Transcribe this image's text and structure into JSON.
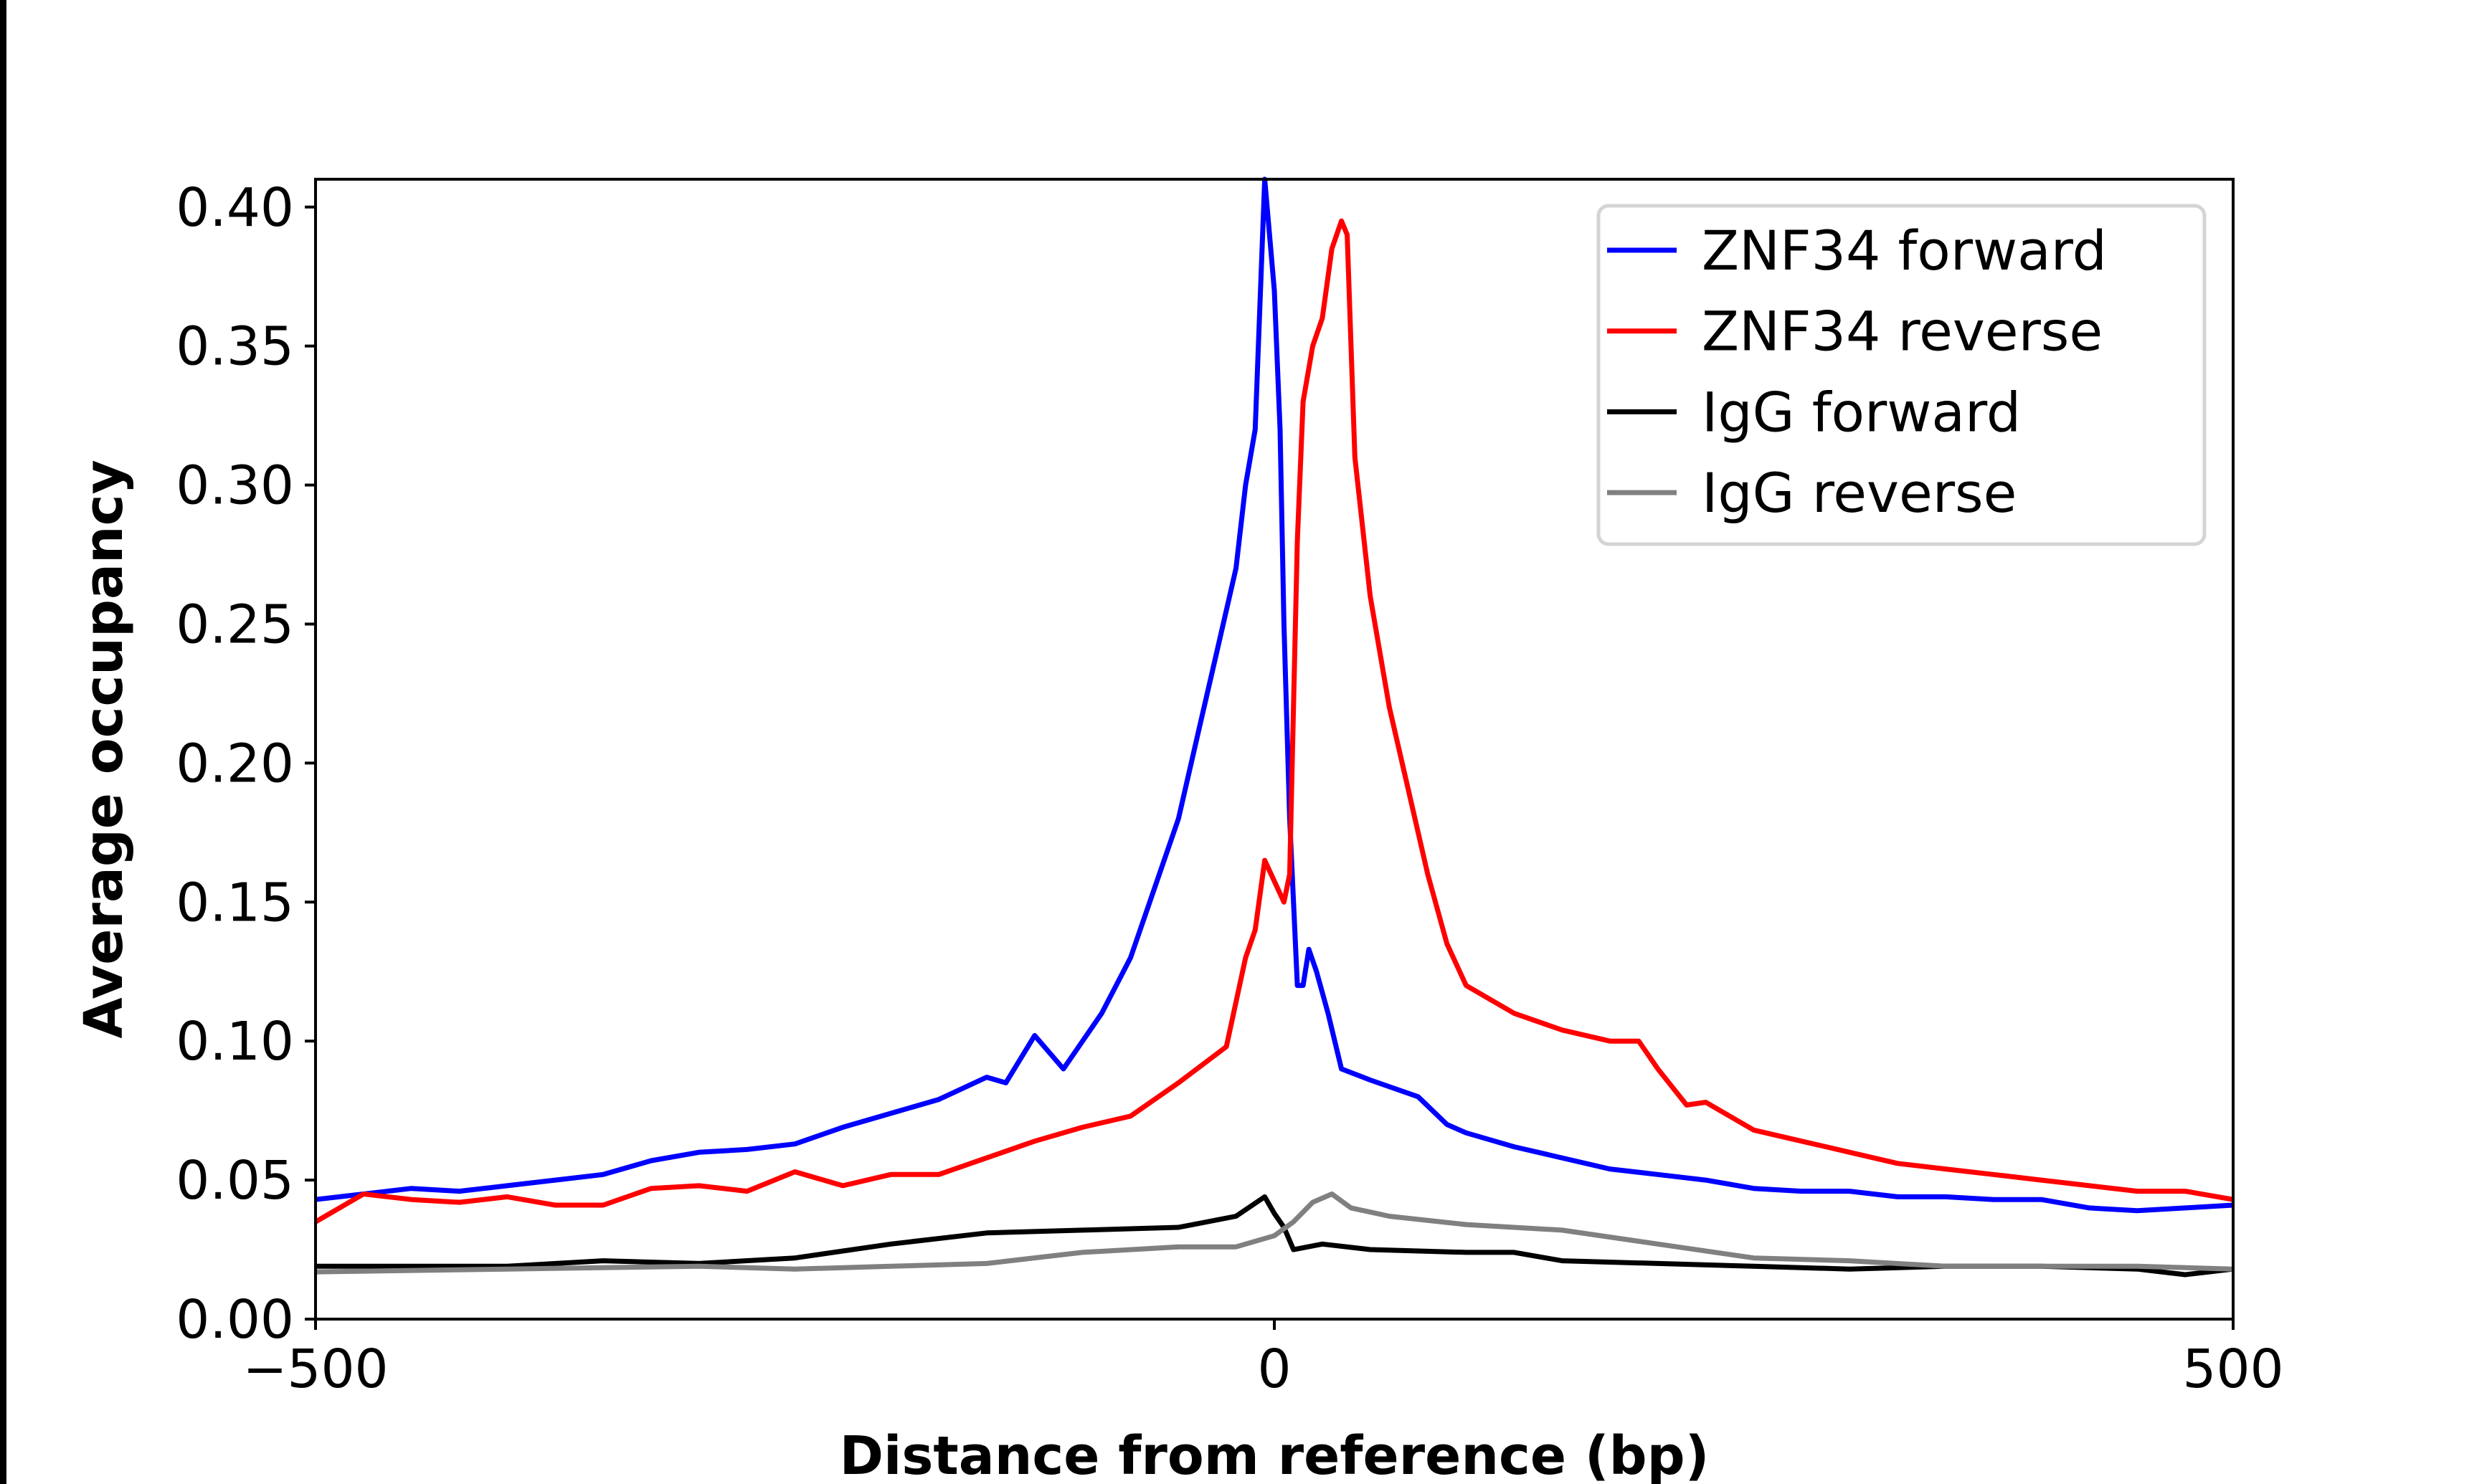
{
  "chart_data": {
    "type": "line",
    "title": "",
    "xlabel": "Distance from reference (bp)",
    "ylabel": "Average occupancy",
    "xlim": [
      -500,
      500
    ],
    "ylim": [
      0,
      0.41
    ],
    "xticks": [
      -500,
      0,
      500
    ],
    "xtick_labels": [
      "−500",
      "0",
      "500"
    ],
    "yticks": [
      0,
      0.05,
      0.1,
      0.15,
      0.2,
      0.25,
      0.3,
      0.35,
      0.4
    ],
    "ytick_labels": [
      "0.00",
      "0.05",
      "0.10",
      "0.15",
      "0.20",
      "0.25",
      "0.30",
      "0.35",
      "0.40"
    ],
    "grid": false,
    "legend_position": "top-right",
    "series": [
      {
        "name": "ZNF34 forward",
        "color": "#0000ff",
        "x": [
          -500,
          -475,
          -450,
          -425,
          -400,
          -375,
          -350,
          -325,
          -300,
          -275,
          -250,
          -225,
          -200,
          -175,
          -150,
          -140,
          -125,
          -110,
          -100,
          -90,
          -75,
          -60,
          -50,
          -40,
          -30,
          -20,
          -15,
          -10,
          -5,
          0,
          3,
          5,
          8,
          12,
          15,
          18,
          22,
          28,
          35,
          50,
          75,
          90,
          100,
          125,
          150,
          175,
          200,
          225,
          250,
          275,
          300,
          325,
          350,
          375,
          400,
          425,
          450,
          475,
          500
        ],
        "y": [
          0.043,
          0.045,
          0.047,
          0.046,
          0.048,
          0.05,
          0.052,
          0.057,
          0.06,
          0.061,
          0.063,
          0.069,
          0.074,
          0.079,
          0.087,
          0.085,
          0.102,
          0.09,
          0.1,
          0.11,
          0.13,
          0.16,
          0.18,
          0.21,
          0.24,
          0.27,
          0.3,
          0.32,
          0.41,
          0.37,
          0.32,
          0.25,
          0.18,
          0.12,
          0.12,
          0.133,
          0.125,
          0.11,
          0.09,
          0.086,
          0.08,
          0.07,
          0.067,
          0.062,
          0.058,
          0.054,
          0.052,
          0.05,
          0.047,
          0.046,
          0.046,
          0.044,
          0.044,
          0.043,
          0.043,
          0.04,
          0.039,
          0.04,
          0.041
        ]
      },
      {
        "name": "ZNF34 reverse",
        "color": "#ff0000",
        "x": [
          -500,
          -475,
          -450,
          -425,
          -400,
          -375,
          -350,
          -325,
          -300,
          -275,
          -250,
          -225,
          -200,
          -175,
          -150,
          -125,
          -100,
          -75,
          -50,
          -25,
          -15,
          -10,
          -5,
          5,
          8,
          10,
          12,
          15,
          20,
          25,
          30,
          35,
          38,
          42,
          50,
          60,
          70,
          80,
          90,
          100,
          125,
          150,
          175,
          190,
          200,
          215,
          225,
          250,
          275,
          300,
          325,
          350,
          375,
          400,
          425,
          450,
          475,
          500
        ],
        "y": [
          0.035,
          0.045,
          0.043,
          0.042,
          0.044,
          0.041,
          0.041,
          0.047,
          0.048,
          0.046,
          0.053,
          0.048,
          0.052,
          0.052,
          0.058,
          0.064,
          0.069,
          0.073,
          0.085,
          0.098,
          0.13,
          0.14,
          0.165,
          0.15,
          0.16,
          0.22,
          0.28,
          0.33,
          0.35,
          0.36,
          0.385,
          0.395,
          0.39,
          0.31,
          0.26,
          0.22,
          0.19,
          0.16,
          0.135,
          0.12,
          0.11,
          0.104,
          0.1,
          0.1,
          0.09,
          0.077,
          0.078,
          0.068,
          0.064,
          0.06,
          0.056,
          0.054,
          0.052,
          0.05,
          0.048,
          0.046,
          0.046,
          0.043
        ]
      },
      {
        "name": "IgG forward",
        "color": "#000000",
        "x": [
          -500,
          -400,
          -350,
          -300,
          -250,
          -200,
          -150,
          -100,
          -50,
          -20,
          -5,
          0,
          5,
          10,
          25,
          50,
          100,
          125,
          150,
          200,
          250,
          300,
          350,
          400,
          450,
          475,
          500
        ],
        "y": [
          0.019,
          0.019,
          0.021,
          0.02,
          0.022,
          0.027,
          0.031,
          0.032,
          0.033,
          0.037,
          0.044,
          0.038,
          0.033,
          0.025,
          0.027,
          0.025,
          0.024,
          0.024,
          0.021,
          0.02,
          0.019,
          0.018,
          0.019,
          0.019,
          0.018,
          0.016,
          0.018
        ]
      },
      {
        "name": "IgG reverse",
        "color": "#808080",
        "x": [
          -500,
          -400,
          -300,
          -250,
          -200,
          -150,
          -100,
          -50,
          -20,
          0,
          10,
          20,
          30,
          40,
          60,
          100,
          150,
          200,
          250,
          300,
          350,
          400,
          450,
          500
        ],
        "y": [
          0.017,
          0.018,
          0.019,
          0.018,
          0.019,
          0.02,
          0.024,
          0.026,
          0.026,
          0.03,
          0.035,
          0.042,
          0.045,
          0.04,
          0.037,
          0.034,
          0.032,
          0.027,
          0.022,
          0.021,
          0.019,
          0.019,
          0.019,
          0.018
        ]
      }
    ]
  }
}
